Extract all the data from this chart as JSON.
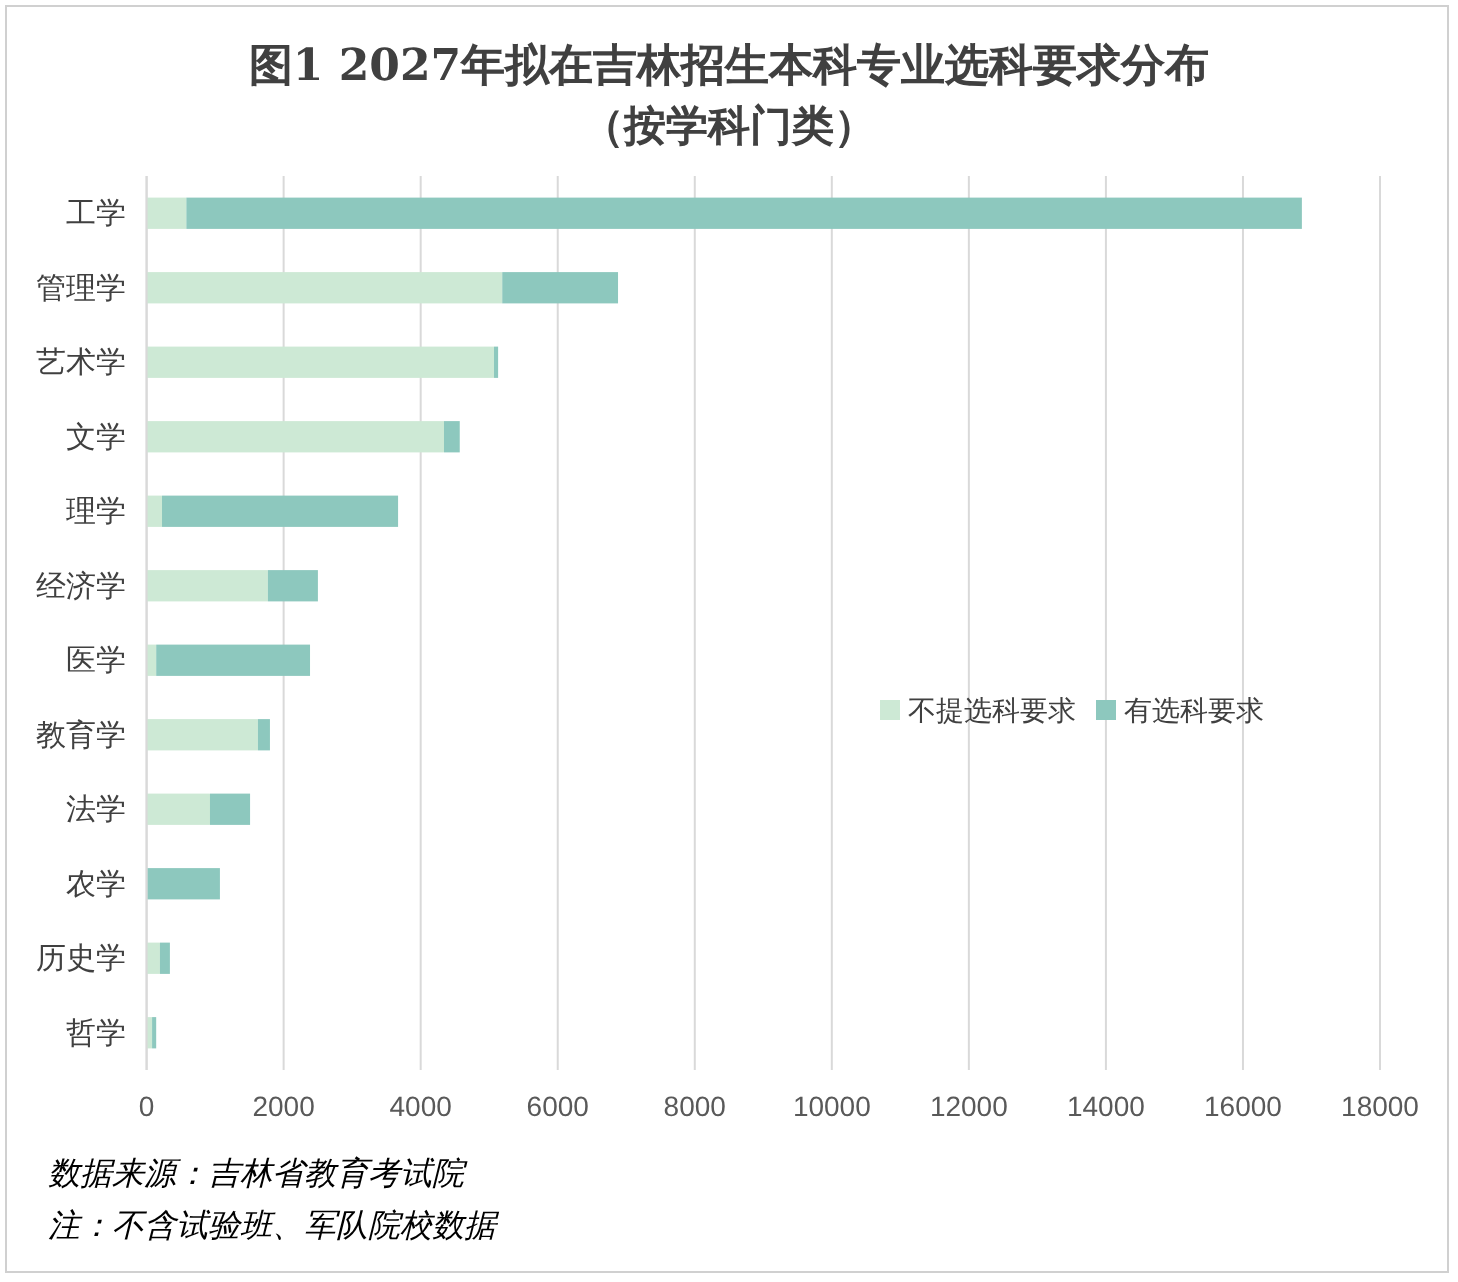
{
  "chart_data": {
    "type": "bar",
    "orientation": "horizontal",
    "stacked": true,
    "title": "图1 2027年拟在吉林招生本科专业选科要求分布",
    "subtitle": "（按学科门类）",
    "categories": [
      "工学",
      "管理学",
      "艺术学",
      "文学",
      "理学",
      "经济学",
      "医学",
      "教育学",
      "法学",
      "农学",
      "历史学",
      "哲学"
    ],
    "series": [
      {
        "name": "不提选科要求",
        "color": "#cde9d5",
        "values": [
          580,
          5190,
          5070,
          4340,
          225,
          1770,
          140,
          1625,
          925,
          10,
          195,
          80
        ]
      },
      {
        "name": "有选科要求",
        "color": "#8dc8be",
        "values": [
          16280,
          1690,
          60,
          230,
          3445,
          730,
          2245,
          175,
          585,
          1060,
          145,
          60
        ]
      }
    ],
    "xlim": [
      0,
      18000
    ],
    "xticks": [
      0,
      2000,
      4000,
      6000,
      8000,
      10000,
      12000,
      14000,
      16000,
      18000
    ],
    "grid": "x",
    "legend": "right",
    "annotations": [
      "数据来源：吉林省教育考试院",
      "注：不含试验班、军队院校数据"
    ]
  }
}
